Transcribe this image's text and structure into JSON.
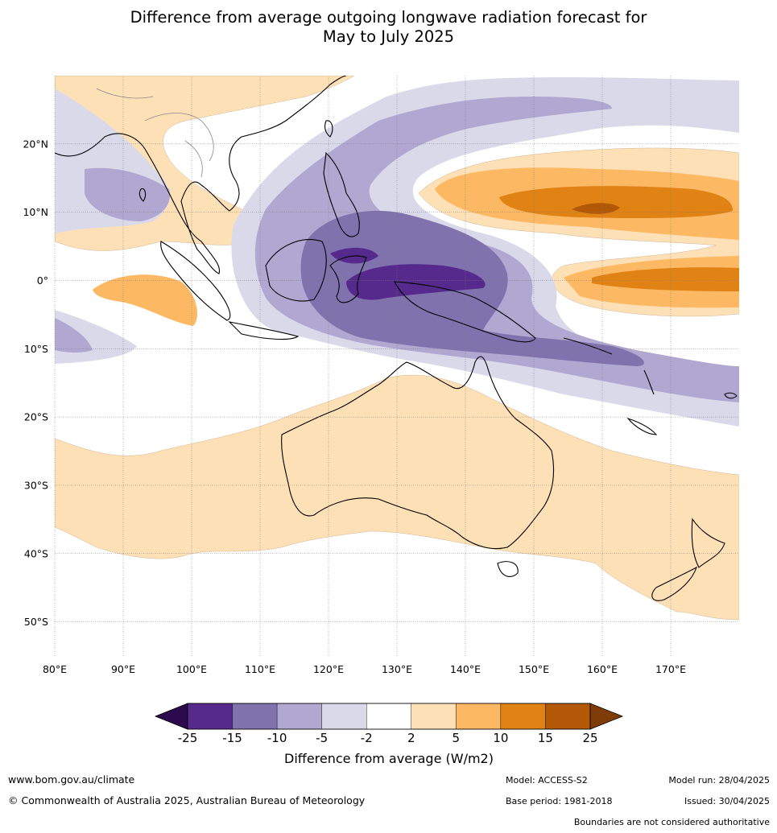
{
  "title": {
    "line1": "Difference from average outgoing longwave radiation forecast for",
    "line2": "May to July 2025"
  },
  "map": {
    "lon_ticks": [
      "80°E",
      "90°E",
      "100°E",
      "110°E",
      "120°E",
      "130°E",
      "140°E",
      "150°E",
      "160°E",
      "170°E"
    ],
    "lat_ticks": [
      "20°N",
      "10°N",
      "0°",
      "10°S",
      "20°S",
      "30°S",
      "40°S",
      "50°S"
    ],
    "lon_range": [
      80,
      180
    ],
    "lat_range": [
      -55,
      30
    ],
    "grid": true
  },
  "colorbar": {
    "title": "Difference from average (W/m2)",
    "levels": [
      "-25",
      "-15",
      "-10",
      "-5",
      "-2",
      "2",
      "5",
      "10",
      "15",
      "25"
    ],
    "colors": {
      "below_min": "#2d0a4e",
      "bins": [
        "#552a8c",
        "#8073ad",
        "#b0a8d1",
        "#d9d9ea",
        "#ffffff",
        "#fee0b6",
        "#fdb863",
        "#e08214",
        "#b35806"
      ],
      "above_max": "#7f3b08"
    }
  },
  "footer": {
    "website": "www.bom.gov.au/climate",
    "copyright": "© Commonwealth of Australia 2025, Australian Bureau of Meteorology",
    "model": "Model: ACCESS-S2",
    "base_period": "Base period: 1981-2018",
    "model_run": "Model run: 28/04/2025",
    "issued": "Issued: 30/04/2025",
    "disclaimer": "Boundaries are not considered authoritative"
  }
}
